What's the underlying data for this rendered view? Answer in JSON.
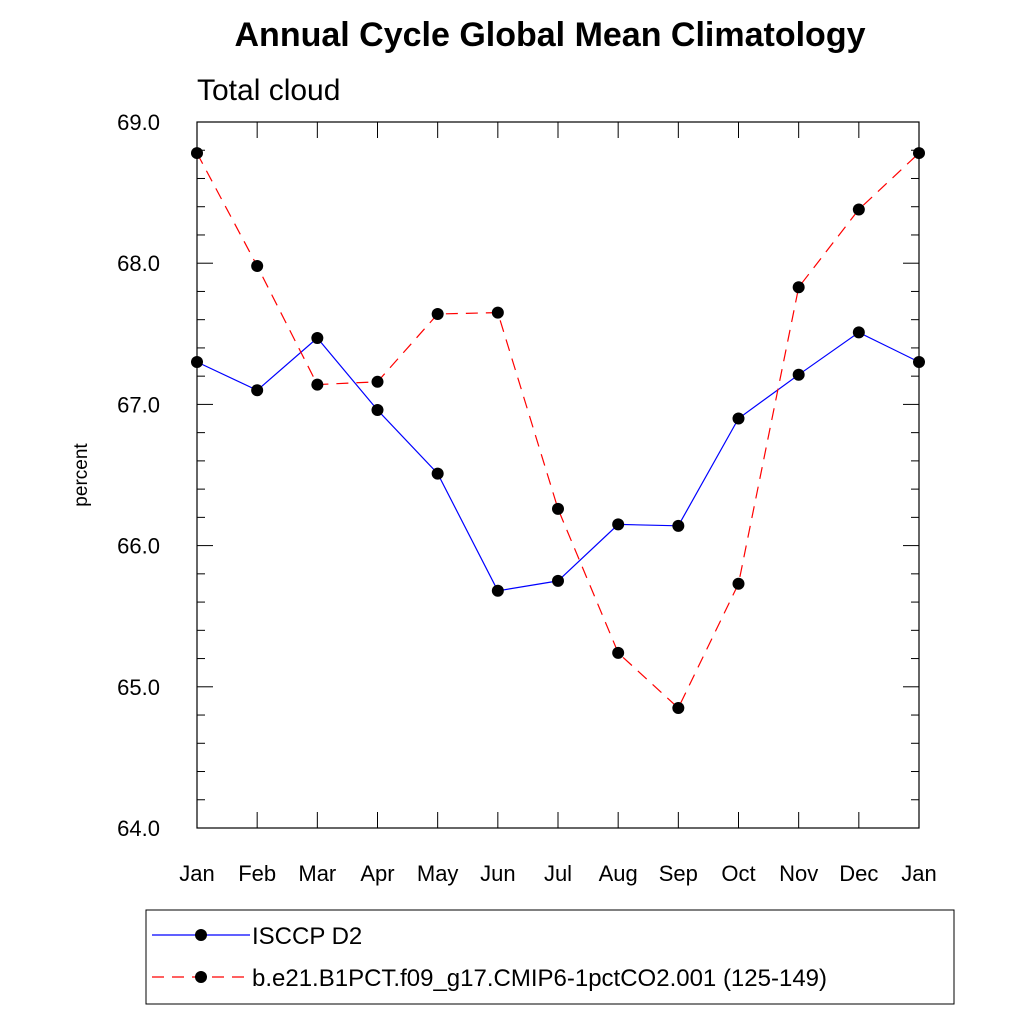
{
  "chart_data": {
    "type": "line",
    "title": "Annual Cycle Global Mean Climatology",
    "subtitle": "Total cloud",
    "xlabel": "",
    "ylabel": "percent",
    "categories": [
      "Jan",
      "Feb",
      "Mar",
      "Apr",
      "May",
      "Jun",
      "Jul",
      "Aug",
      "Sep",
      "Oct",
      "Nov",
      "Dec",
      "Jan"
    ],
    "ylim": [
      64.0,
      69.0
    ],
    "yticks": [
      "64.0",
      "65.0",
      "66.0",
      "67.0",
      "68.0",
      "69.0"
    ],
    "grid": false,
    "legend_position": "bottom",
    "series": [
      {
        "name": "ISCCP D2",
        "color": "#0000ff",
        "dash": "solid",
        "values": [
          67.3,
          67.1,
          67.47,
          66.96,
          66.51,
          65.68,
          65.75,
          66.15,
          66.14,
          66.9,
          67.21,
          67.51,
          67.3
        ]
      },
      {
        "name": "b.e21.B1PCT.f09_g17.CMIP6-1pctCO2.001 (125-149)",
        "color": "#ff0000",
        "dash": "dashed",
        "values": [
          68.78,
          67.98,
          67.14,
          67.16,
          67.64,
          67.65,
          66.26,
          65.24,
          64.85,
          65.73,
          67.83,
          68.38,
          68.78
        ]
      }
    ]
  }
}
